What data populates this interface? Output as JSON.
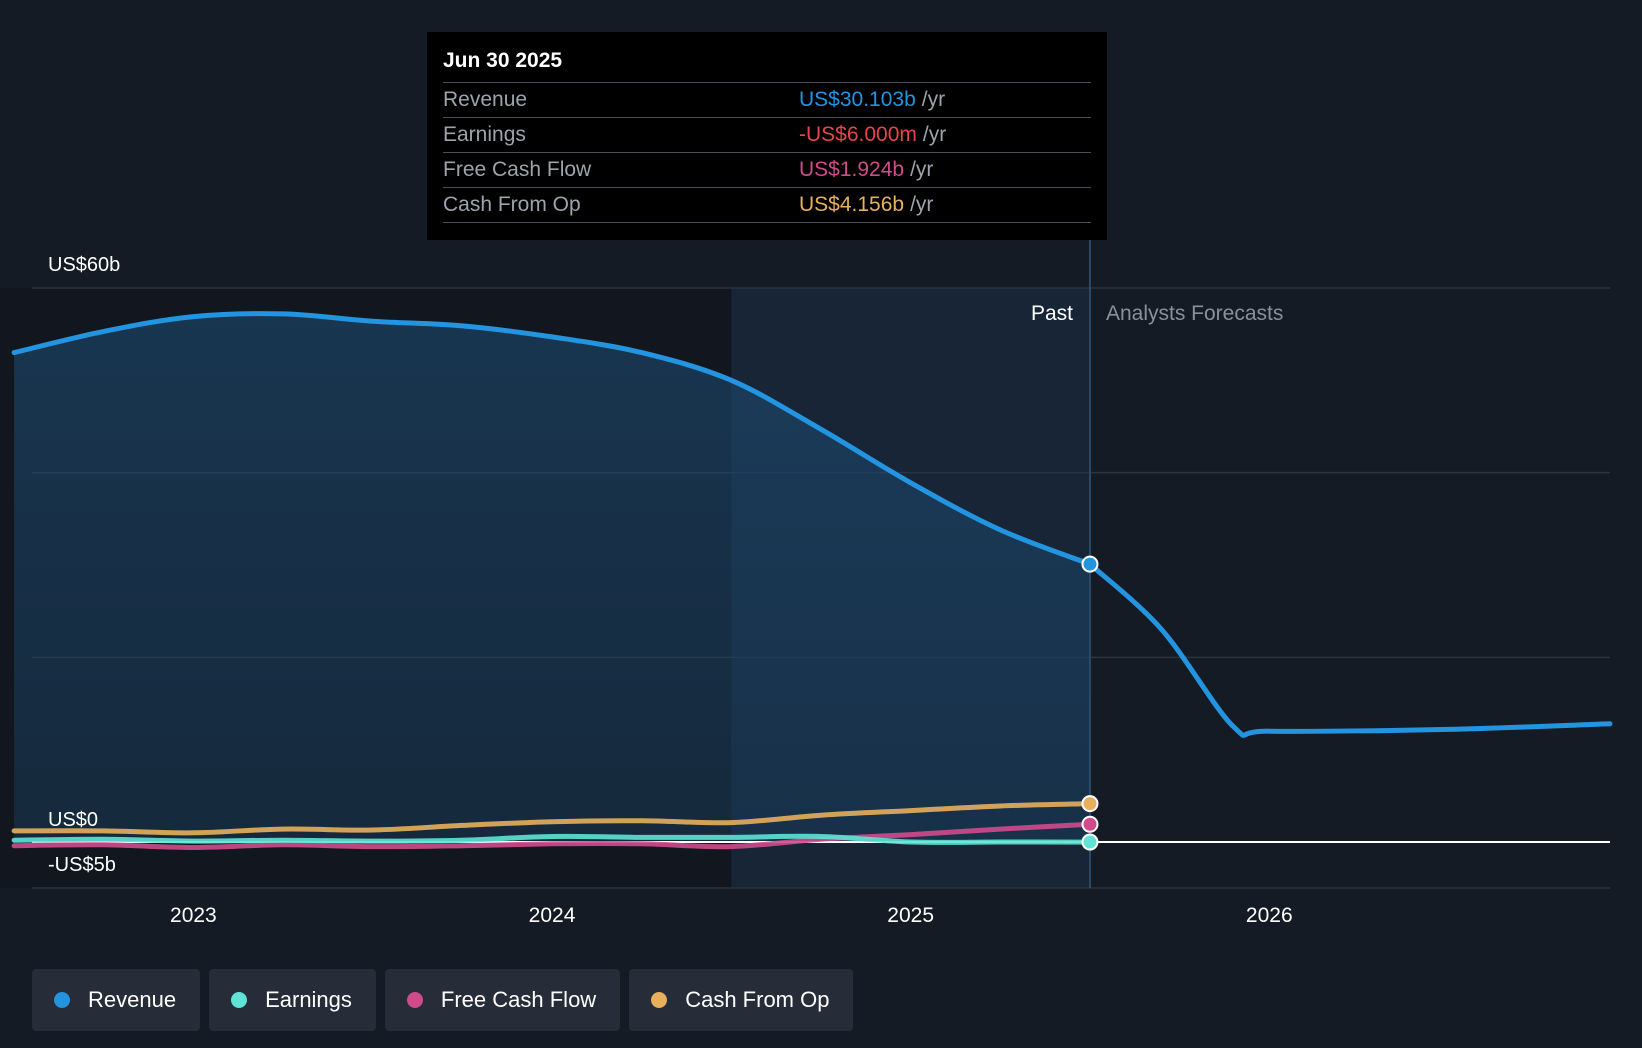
{
  "chart_data": {
    "type": "area",
    "title": "",
    "ylim": [
      -5,
      60
    ],
    "y_axis": {
      "top_label": "US$60b",
      "zero_label": "US$0",
      "bottom_label": "-US$5b"
    },
    "x_axis": {
      "range": [
        2022.55,
        2026.95
      ],
      "ticks": [
        2023,
        2024,
        2025,
        2026
      ],
      "tick_labels": [
        "2023",
        "2024",
        "2025",
        "2026"
      ]
    },
    "gridlines": [
      60,
      40,
      20
    ],
    "past_region_start": 2024.5,
    "present_x": 2025.5,
    "region_labels": {
      "past": "Past",
      "forecast": "Analysts Forecasts"
    },
    "series": [
      {
        "name": "Revenue",
        "key": "revenue",
        "color": "#2394df",
        "x": [
          2022.5,
          2022.75,
          2023.0,
          2023.25,
          2023.5,
          2023.75,
          2024.0,
          2024.25,
          2024.5,
          2024.75,
          2025.0,
          2025.25,
          2025.5
        ],
        "values": [
          53.0,
          55.3,
          56.9,
          57.2,
          56.4,
          55.9,
          54.7,
          53.0,
          50.0,
          44.7,
          38.9,
          33.8,
          30.1
        ],
        "forecast_x": [
          2025.5,
          2025.7,
          2025.9,
          2026.0,
          2026.5,
          2026.95
        ],
        "forecast_values": [
          30.1,
          23.0,
          12.5,
          12.0,
          12.2,
          12.8
        ]
      },
      {
        "name": "Earnings",
        "key": "earnings",
        "color": "#5ee3d4",
        "x": [
          2022.5,
          2022.75,
          2023.0,
          2023.25,
          2023.5,
          2023.75,
          2024.0,
          2024.25,
          2024.5,
          2024.75,
          2025.0,
          2025.25,
          2025.5
        ],
        "values": [
          0.2,
          0.3,
          0.1,
          0.2,
          0.1,
          0.2,
          0.6,
          0.5,
          0.5,
          0.6,
          0.0,
          0.0,
          -0.006
        ]
      },
      {
        "name": "Free Cash Flow",
        "key": "fcf",
        "color": "#cf4b8c",
        "x": [
          2022.5,
          2022.75,
          2023.0,
          2023.25,
          2023.5,
          2023.75,
          2024.0,
          2024.25,
          2024.5,
          2024.75,
          2025.0,
          2025.25,
          2025.5
        ],
        "values": [
          -0.4,
          -0.3,
          -0.6,
          -0.3,
          -0.5,
          -0.4,
          -0.2,
          -0.2,
          -0.5,
          0.3,
          0.8,
          1.4,
          1.924
        ]
      },
      {
        "name": "Cash From Op",
        "key": "cfo",
        "color": "#e8af5c",
        "x": [
          2022.5,
          2022.75,
          2023.0,
          2023.25,
          2023.5,
          2023.75,
          2024.0,
          2024.25,
          2024.5,
          2024.75,
          2025.0,
          2025.25,
          2025.5
        ],
        "values": [
          1.2,
          1.2,
          1.0,
          1.4,
          1.3,
          1.8,
          2.2,
          2.3,
          2.1,
          2.9,
          3.4,
          3.9,
          4.156
        ]
      }
    ]
  },
  "tooltip": {
    "date": "Jun 30 2025",
    "unit": "/yr",
    "rows": [
      {
        "label": "Revenue",
        "value": "US$30.103b",
        "color": "#2394df"
      },
      {
        "label": "Earnings",
        "value": "-US$6.000m",
        "color": "#e8434c"
      },
      {
        "label": "Free Cash Flow",
        "value": "US$1.924b",
        "color": "#cf4b8c"
      },
      {
        "label": "Cash From Op",
        "value": "US$4.156b",
        "color": "#e8af5c"
      }
    ]
  },
  "legend": [
    {
      "label": "Revenue",
      "color": "#2394df"
    },
    {
      "label": "Earnings",
      "color": "#5ee3d4"
    },
    {
      "label": "Free Cash Flow",
      "color": "#cf4b8c"
    },
    {
      "label": "Cash From Op",
      "color": "#e8af5c"
    }
  ]
}
